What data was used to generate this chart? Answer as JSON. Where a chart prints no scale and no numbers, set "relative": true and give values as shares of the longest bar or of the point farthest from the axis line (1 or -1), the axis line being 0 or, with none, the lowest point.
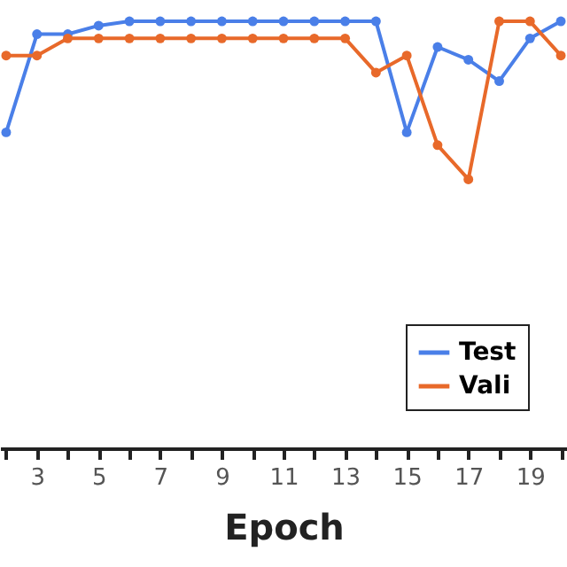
{
  "chart_data": {
    "type": "line",
    "xlabel": "Epoch",
    "relative": true,
    "x": [
      2,
      3,
      4,
      5,
      6,
      7,
      8,
      9,
      10,
      11,
      12,
      13,
      14,
      15,
      16,
      17,
      18,
      19,
      20
    ],
    "xlim": [
      1.8,
      20.2
    ],
    "xticks": [
      {
        "value": 2,
        "label": null
      },
      3,
      {
        "value": 4,
        "label": null
      },
      5,
      {
        "value": 6,
        "label": null
      },
      7,
      {
        "value": 8,
        "label": null
      },
      9,
      {
        "value": 10,
        "label": null
      },
      11,
      {
        "value": 12,
        "label": null
      },
      13,
      {
        "value": 14,
        "label": null
      },
      15,
      {
        "value": 16,
        "label": null
      },
      17,
      {
        "value": 18,
        "label": null
      },
      19,
      {
        "value": 20,
        "label": null
      }
    ],
    "series": [
      {
        "name": "Test",
        "color": "#4a7fe8",
        "values": [
          0.74,
          0.97,
          0.97,
          0.99,
          1,
          1,
          1,
          1,
          1,
          1,
          1,
          1,
          1,
          0.74,
          0.94,
          0.91,
          0.86,
          0.96,
          1
        ]
      },
      {
        "name": "Vali",
        "color": "#e8692a",
        "values": [
          0.92,
          0.92,
          0.96,
          0.96,
          0.96,
          0.96,
          0.96,
          0.96,
          0.96,
          0.96,
          0.96,
          0.96,
          0.88,
          0.92,
          0.71,
          0.63,
          1,
          1,
          0.92
        ]
      }
    ],
    "legend": "bottom right",
    "marker": "circle",
    "line_style": "solid",
    "grid": false
  }
}
